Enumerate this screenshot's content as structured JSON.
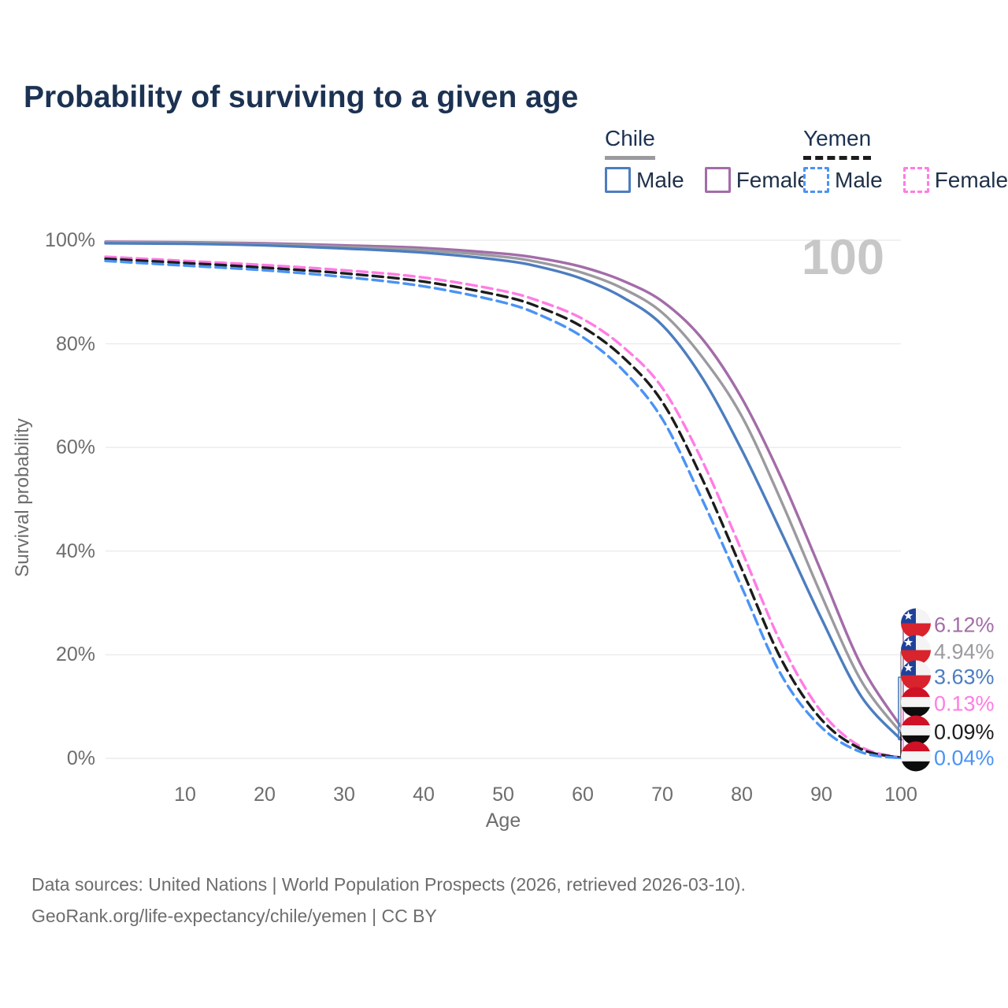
{
  "title": "Probability of surviving to a given age",
  "watermark_age": "100",
  "legend": {
    "groups": [
      {
        "label": "Chile",
        "line_style": "solid",
        "line_color": "#9b9b9f",
        "items": [
          {
            "label": "Male",
            "color": "#4c7dbf",
            "dashed": false
          },
          {
            "label": "Female",
            "color": "#a36ca8",
            "dashed": false
          }
        ]
      },
      {
        "label": "Yemen",
        "line_style": "dashed",
        "line_color": "#1c1c1c",
        "items": [
          {
            "label": "Male",
            "color": "#4a93f5",
            "dashed": true
          },
          {
            "label": "Female",
            "color": "#ff7ce4",
            "dashed": true
          }
        ]
      }
    ]
  },
  "chart_data": {
    "type": "line",
    "title": "Probability of surviving to a given age",
    "xlabel": "Age",
    "ylabel": "Survival probability",
    "xlim": [
      0,
      100
    ],
    "ylim": [
      0,
      100
    ],
    "grid": true,
    "x_ticks": [
      10,
      20,
      30,
      40,
      50,
      60,
      70,
      80,
      90,
      100
    ],
    "y_ticks": [
      {
        "value": 0,
        "label": "0%"
      },
      {
        "value": 20,
        "label": "20%"
      },
      {
        "value": 40,
        "label": "40%"
      },
      {
        "value": 60,
        "label": "60%"
      },
      {
        "value": 80,
        "label": "80%"
      },
      {
        "value": 100,
        "label": "100%"
      }
    ],
    "ages": [
      0,
      10,
      20,
      30,
      40,
      50,
      55,
      60,
      65,
      70,
      75,
      80,
      85,
      90,
      95,
      100
    ],
    "series": [
      {
        "name": "Chile Female",
        "country": "Chile",
        "sex": "Female",
        "color": "#a36ca8",
        "dashed": false,
        "flag": "chile",
        "end_label": "6.12%",
        "values": [
          99.7,
          99.6,
          99.4,
          99.0,
          98.5,
          97.4,
          96.4,
          94.8,
          92.2,
          88.2,
          81.0,
          69.5,
          54.0,
          36.0,
          18.0,
          6.12
        ]
      },
      {
        "name": "Chile",
        "country": "Chile",
        "sex": "All",
        "color": "#9b9b9f",
        "dashed": false,
        "flag": "chile",
        "end_label": "4.94%",
        "values": [
          99.6,
          99.5,
          99.2,
          98.7,
          98.1,
          96.8,
          95.6,
          93.7,
          90.7,
          86.0,
          77.5,
          66.0,
          49.5,
          31.5,
          15.0,
          4.94
        ]
      },
      {
        "name": "Chile Male",
        "country": "Chile",
        "sex": "Male",
        "color": "#4c7dbf",
        "dashed": false,
        "flag": "chile",
        "end_label": "3.63%",
        "values": [
          99.4,
          99.3,
          99.0,
          98.4,
          97.6,
          96.1,
          94.7,
          92.5,
          89.0,
          83.6,
          73.5,
          59.5,
          43.5,
          27.0,
          12.0,
          3.63
        ]
      },
      {
        "name": "Yemen Female",
        "country": "Yemen",
        "sex": "Female",
        "color": "#ff7ce4",
        "dashed": true,
        "flag": "yemen",
        "end_label": "0.13%",
        "values": [
          96.8,
          96.0,
          95.2,
          94.2,
          92.8,
          90.2,
          88.0,
          84.8,
          79.5,
          71.5,
          57.5,
          40.0,
          22.0,
          9.0,
          2.2,
          0.13
        ]
      },
      {
        "name": "Yemen",
        "country": "Yemen",
        "sex": "All",
        "color": "#1c1c1c",
        "dashed": true,
        "flag": "yemen",
        "end_label": "0.09%",
        "values": [
          96.4,
          95.6,
          94.7,
          93.6,
          92.0,
          89.2,
          86.8,
          83.2,
          77.5,
          68.8,
          54.0,
          36.5,
          19.0,
          7.5,
          1.8,
          0.09
        ]
      },
      {
        "name": "Yemen Male",
        "country": "Yemen",
        "sex": "Male",
        "color": "#4a93f5",
        "dashed": true,
        "flag": "yemen",
        "end_label": "0.04%",
        "values": [
          96.0,
          95.1,
          94.2,
          92.9,
          91.1,
          88.0,
          85.3,
          81.3,
          75.0,
          65.5,
          50.0,
          33.0,
          16.0,
          6.0,
          1.2,
          0.04
        ]
      }
    ],
    "flag_colors": {
      "chile": {
        "blue": "#20419a",
        "red": "#d9232d",
        "white": "#f4f4f4"
      },
      "yemen": {
        "red": "#ce1126",
        "white": "#f4f4f4",
        "black": "#0c0c0c"
      }
    }
  },
  "footer": {
    "line1": "Data sources: United Nations | World Population Prospects (2026, retrieved 2026-03-10).",
    "line2": "GeoRank.org/life-expectancy/chile/yemen | CC BY"
  }
}
